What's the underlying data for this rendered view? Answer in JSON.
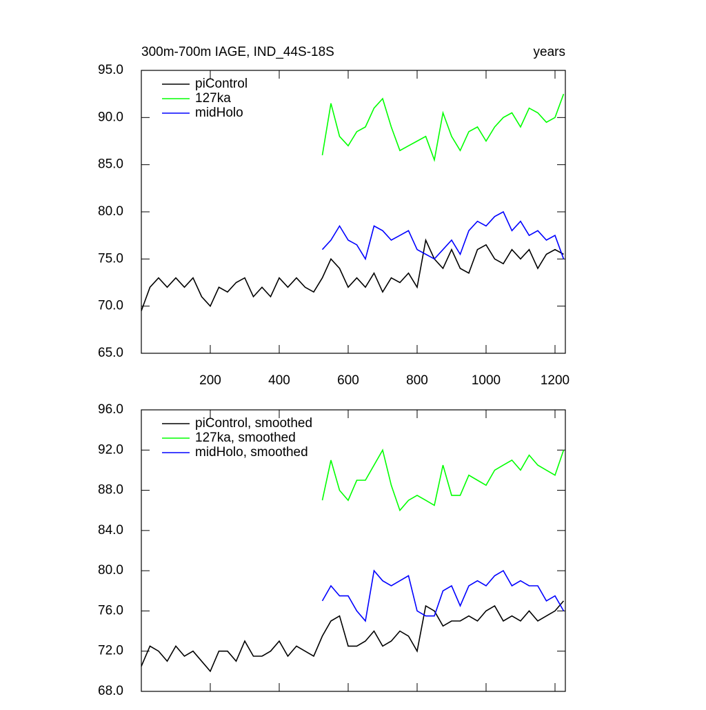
{
  "chart_data": [
    {
      "type": "line",
      "title": "300m-700m IAGE, IND_44S-18S",
      "right_title": "years",
      "x": [
        0,
        25,
        50,
        75,
        100,
        125,
        150,
        175,
        200,
        225,
        250,
        275,
        300,
        325,
        350,
        375,
        400,
        425,
        450,
        475,
        500,
        525,
        550,
        575,
        600,
        625,
        650,
        675,
        700,
        725,
        750,
        775,
        800,
        825,
        850,
        875,
        900,
        925,
        950,
        975,
        1000,
        1025,
        1050,
        1075,
        1100,
        1125,
        1150,
        1175,
        1200,
        1225
      ],
      "xlim": [
        0,
        1230
      ],
      "xticks": [
        200,
        400,
        600,
        800,
        1000,
        1200
      ],
      "ylim": [
        65,
        95
      ],
      "yticks": [
        {
          "value": 65,
          "label": "65.0"
        },
        {
          "value": 70,
          "label": "70.0"
        },
        {
          "value": 75,
          "label": "75.0"
        },
        {
          "value": 80,
          "label": "80.0"
        },
        {
          "value": 85,
          "label": "85.0"
        },
        {
          "value": 90,
          "label": "90.0"
        },
        {
          "value": 95,
          "label": "95.0"
        }
      ],
      "series": [
        {
          "name": "piControl",
          "color": "#000000",
          "values": [
            69.5,
            72,
            73,
            72,
            73,
            72,
            73,
            71,
            70,
            72,
            71.5,
            72.5,
            73,
            71,
            72,
            71,
            73,
            72,
            73,
            72,
            71.5,
            73,
            75,
            74,
            72,
            73,
            72,
            73.5,
            71.5,
            73,
            72.5,
            73.5,
            72,
            77,
            75,
            74,
            76,
            74,
            73.5,
            76,
            76.5,
            75,
            74.5,
            76,
            75,
            76,
            74,
            75.5,
            76,
            75.5
          ]
        },
        {
          "name": "127ka",
          "color": "#00ff00",
          "values": [
            null,
            null,
            null,
            null,
            null,
            null,
            null,
            null,
            null,
            null,
            null,
            null,
            null,
            null,
            null,
            null,
            null,
            null,
            null,
            null,
            null,
            86,
            91.5,
            88,
            87,
            88.5,
            89,
            91,
            92,
            89,
            86.5,
            87,
            87.5,
            88,
            85.5,
            90.5,
            88,
            86.5,
            88.5,
            89,
            87.5,
            89,
            90,
            90.5,
            89,
            91,
            90.5,
            89.5,
            90,
            92.5
          ]
        },
        {
          "name": "midHolo",
          "color": "#0000ff",
          "values": [
            null,
            null,
            null,
            null,
            null,
            null,
            null,
            null,
            null,
            null,
            null,
            null,
            null,
            null,
            null,
            null,
            null,
            null,
            null,
            null,
            null,
            76,
            77,
            78.5,
            77,
            76.5,
            75,
            78.5,
            78,
            77,
            77.5,
            78,
            76,
            75.5,
            75,
            76,
            77,
            75.5,
            78,
            79,
            78.5,
            79.5,
            80,
            78,
            79,
            77.5,
            78,
            77,
            77.5,
            75
          ]
        }
      ]
    },
    {
      "type": "line",
      "x": [
        0,
        25,
        50,
        75,
        100,
        125,
        150,
        175,
        200,
        225,
        250,
        275,
        300,
        325,
        350,
        375,
        400,
        425,
        450,
        475,
        500,
        525,
        550,
        575,
        600,
        625,
        650,
        675,
        700,
        725,
        750,
        775,
        800,
        825,
        850,
        875,
        900,
        925,
        950,
        975,
        1000,
        1025,
        1050,
        1075,
        1100,
        1125,
        1150,
        1175,
        1200,
        1225
      ],
      "xlim": [
        0,
        1230
      ],
      "xticks": [
        200,
        400,
        600,
        800,
        1000,
        1200
      ],
      "ylim": [
        68,
        96
      ],
      "yticks": [
        {
          "value": 68,
          "label": "68.0"
        },
        {
          "value": 72,
          "label": "72.0"
        },
        {
          "value": 76,
          "label": "76.0"
        },
        {
          "value": 80,
          "label": "80.0"
        },
        {
          "value": 84,
          "label": "84.0"
        },
        {
          "value": 88,
          "label": "88.0"
        },
        {
          "value": 92,
          "label": "92.0"
        },
        {
          "value": 96,
          "label": "96.0"
        }
      ],
      "series": [
        {
          "name": "piControl, smoothed",
          "color": "#000000",
          "values": [
            70.5,
            72.5,
            72,
            71,
            72.5,
            71.5,
            72,
            71,
            70,
            72,
            72,
            71,
            73,
            71.5,
            71.5,
            72,
            73,
            71.5,
            72.5,
            72,
            71.5,
            73.5,
            75,
            75.5,
            72.5,
            72.5,
            73,
            74,
            72.5,
            73,
            74,
            73.5,
            72,
            76.5,
            76,
            74.5,
            75,
            75,
            75.5,
            75,
            76,
            76.5,
            75,
            75.5,
            75,
            76,
            75,
            75.5,
            76,
            77
          ]
        },
        {
          "name": "127ka, smoothed",
          "color": "#00ff00",
          "values": [
            null,
            null,
            null,
            null,
            null,
            null,
            null,
            null,
            null,
            null,
            null,
            null,
            null,
            null,
            null,
            null,
            null,
            null,
            null,
            null,
            null,
            87,
            91,
            88,
            87,
            89,
            89,
            90.5,
            92,
            88.5,
            86,
            87,
            87.5,
            87,
            86.5,
            90.5,
            87.5,
            87.5,
            89.5,
            89,
            88.5,
            90,
            90.5,
            91,
            90,
            91.5,
            90.5,
            90,
            89.5,
            92
          ]
        },
        {
          "name": "midHolo, smoothed",
          "color": "#0000ff",
          "values": [
            null,
            null,
            null,
            null,
            null,
            null,
            null,
            null,
            null,
            null,
            null,
            null,
            null,
            null,
            null,
            null,
            null,
            null,
            null,
            null,
            null,
            77,
            78.5,
            77.5,
            77.5,
            76,
            75,
            80,
            79,
            78.5,
            79,
            79.5,
            76,
            75.5,
            75.5,
            78,
            78.5,
            76.5,
            78.5,
            79,
            78.5,
            79.5,
            80,
            78.5,
            79,
            78.5,
            78.5,
            77,
            77.5,
            76
          ]
        }
      ]
    }
  ]
}
